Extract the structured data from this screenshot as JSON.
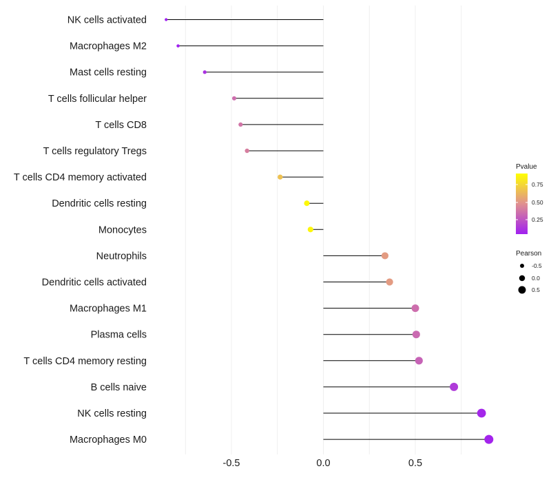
{
  "chart_data": {
    "type": "lollipop",
    "title": "",
    "xlabel": "",
    "ylabel": "",
    "xlim": [
      -0.88,
      0.93
    ],
    "x_ticks": [
      {
        "value": -0.5,
        "label": "-0.5"
      },
      {
        "value": 0.0,
        "label": "0.0"
      },
      {
        "value": 0.5,
        "label": "0.5"
      }
    ],
    "grid": "vertical",
    "baseline": 0.0,
    "categories": [
      "NK cells activated",
      "Macrophages M2",
      "Mast cells resting",
      "T cells follicular helper",
      "T cells CD8",
      "T cells regulatory  Tregs ",
      "T cells CD4 memory activated",
      "Dendritic cells resting",
      "Monocytes",
      "Neutrophils",
      "Dendritic cells activated",
      "Macrophages M1",
      "Plasma cells",
      "T cells CD4 memory resting",
      "B cells naive",
      "NK cells resting",
      "Macrophages M0"
    ],
    "values": [
      -0.855,
      -0.79,
      -0.645,
      -0.485,
      -0.45,
      -0.415,
      -0.235,
      -0.09,
      -0.07,
      0.335,
      0.36,
      0.5,
      0.505,
      0.52,
      0.71,
      0.86,
      0.9
    ],
    "pvalues": [
      0.001,
      0.002,
      0.08,
      0.35,
      0.38,
      0.42,
      0.72,
      0.97,
      0.96,
      0.55,
      0.55,
      0.35,
      0.33,
      0.3,
      0.12,
      0.03,
      0.02
    ],
    "legends": {
      "color": {
        "title": "Pvalue",
        "range": [
          0.0,
          1.0
        ],
        "ticks": [
          {
            "value": 0.75,
            "label": "0.75"
          },
          {
            "value": 0.5,
            "label": "0.50"
          },
          {
            "value": 0.25,
            "label": "0.25"
          }
        ],
        "low_color": "#a020f0",
        "mid_color": "#e09090",
        "high_color": "#ffff00",
        "position": "right"
      },
      "size": {
        "title": "Pearson",
        "entries": [
          {
            "value": -0.5,
            "label": "-0.5"
          },
          {
            "value": 0.0,
            "label": "0.0"
          },
          {
            "value": 0.5,
            "label": "0.5"
          }
        ],
        "position": "right"
      }
    },
    "colors": {
      "segment": "#000000",
      "grid": "#ebebeb"
    }
  }
}
